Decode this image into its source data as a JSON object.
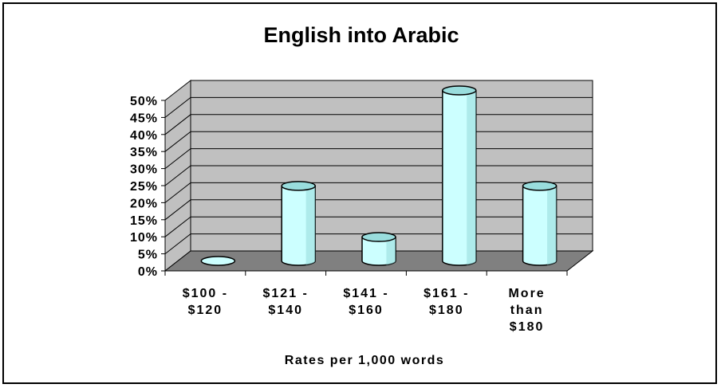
{
  "chart_data": {
    "type": "bar",
    "title": "English into Arabic",
    "xlabel": "Rates per 1,000 words",
    "ylabel": "",
    "categories": [
      [
        "$100 -",
        "$120"
      ],
      [
        "$121 -",
        "$140"
      ],
      [
        "$141 -",
        "$160"
      ],
      [
        "$161 -",
        "$180"
      ],
      [
        "More",
        "than",
        "$180"
      ]
    ],
    "values": [
      0,
      22,
      7,
      50,
      22
    ],
    "ylim": [
      0,
      50
    ],
    "yticks": [
      "0%",
      "5%",
      "10%",
      "15%",
      "20%",
      "25%",
      "30%",
      "35%",
      "40%",
      "45%",
      "50%"
    ],
    "grid": true,
    "legend": "none",
    "style": "3d-cylinder",
    "colors": {
      "bar_fill": "#ccffff",
      "bar_shade": "#99dddd",
      "wall": "#c0c0c0",
      "floor": "#808080",
      "grid": "#000000"
    }
  }
}
